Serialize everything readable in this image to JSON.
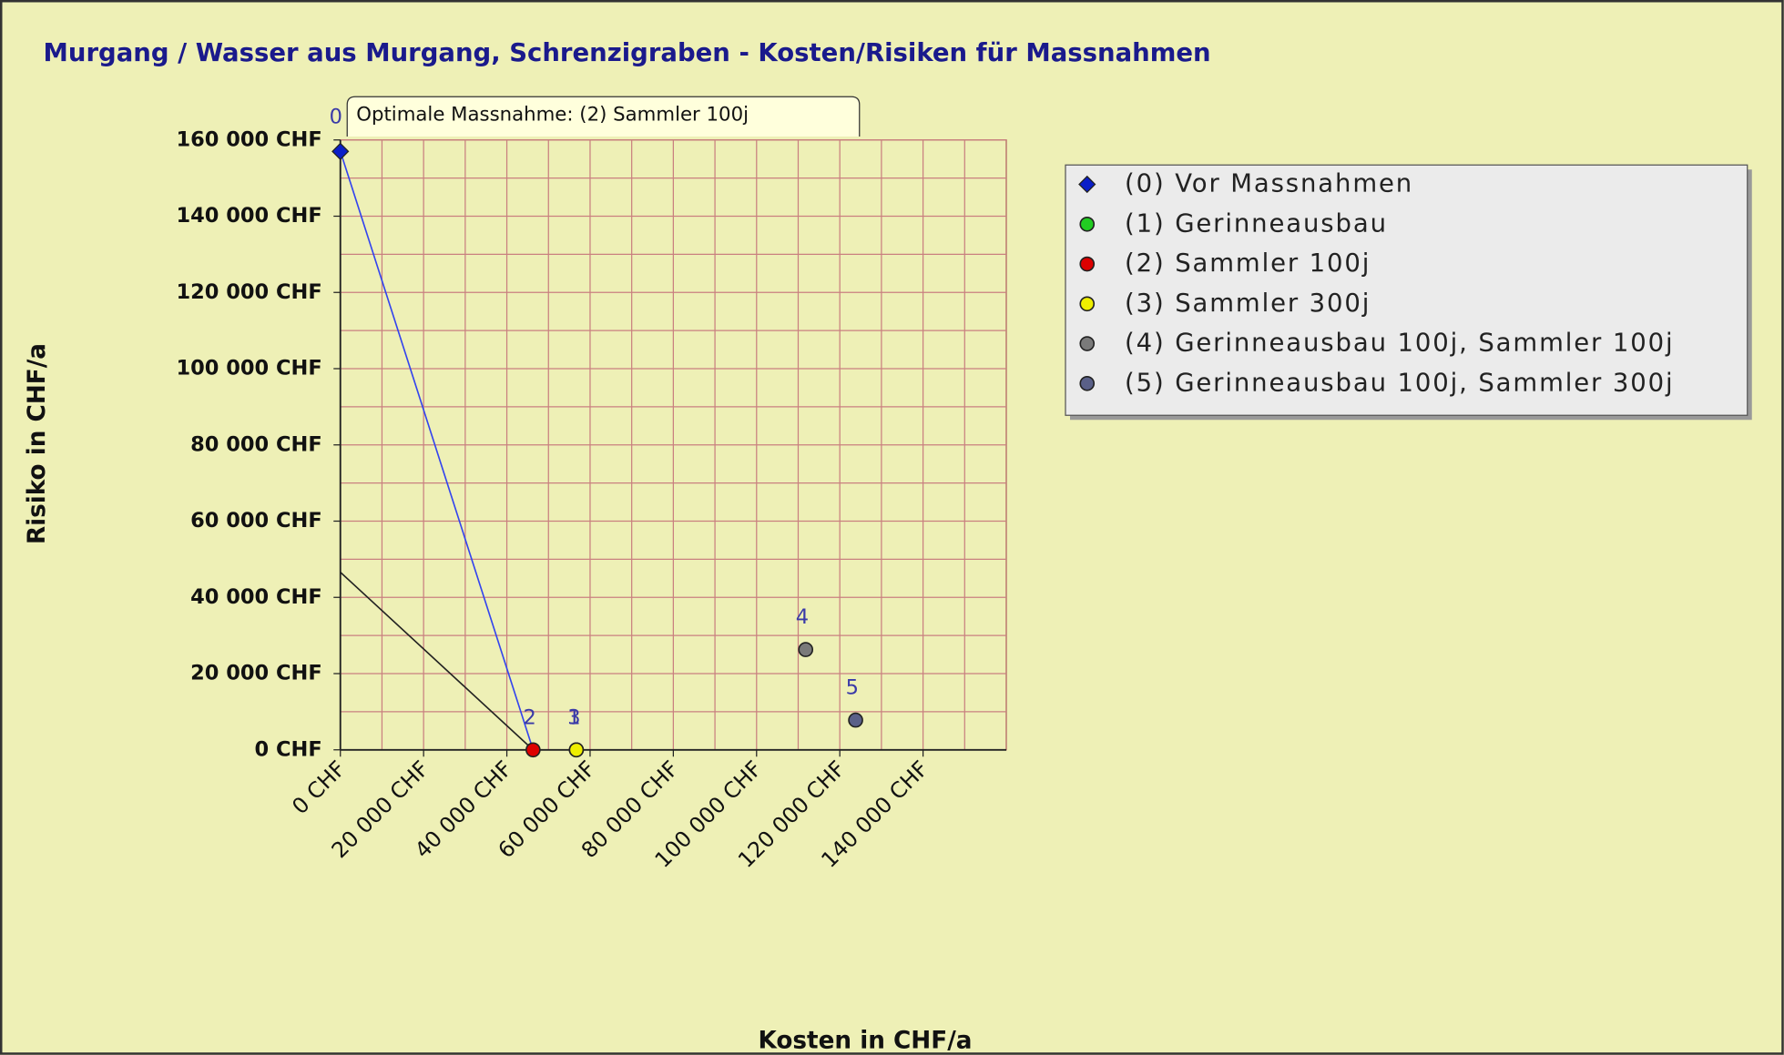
{
  "chart_data": {
    "type": "scatter",
    "title": "Murgang / Wasser aus Murgang, Schrenzigraben - Kosten/Risiken für Massnahmen",
    "x_label": "Kosten in CHF/a",
    "y_label": "Risiko in CHF/a",
    "annotation": "Optimale Massnahme: (2) Sammler 100j",
    "xlim": [
      0,
      160000
    ],
    "ylim": [
      0,
      160000
    ],
    "xticks": [
      {
        "value": 0,
        "label": "0 CHF"
      },
      {
        "value": 20000,
        "label": "20 000 CHF"
      },
      {
        "value": 40000,
        "label": "40 000 CHF"
      },
      {
        "value": 60000,
        "label": "60 000 CHF"
      },
      {
        "value": 80000,
        "label": "80 000 CHF"
      },
      {
        "value": 100000,
        "label": "100 000 CHF"
      },
      {
        "value": 120000,
        "label": "120 000 CHF"
      },
      {
        "value": 140000,
        "label": "140 000 CHF"
      }
    ],
    "yticks": [
      {
        "value": 0,
        "label": "0 CHF"
      },
      {
        "value": 20000,
        "label": "20 000 CHF"
      },
      {
        "value": 40000,
        "label": "40 000 CHF"
      },
      {
        "value": 60000,
        "label": "60 000 CHF"
      },
      {
        "value": 80000,
        "label": "80 000 CHF"
      },
      {
        "value": 100000,
        "label": "100 000 CHF"
      },
      {
        "value": 120000,
        "label": "120 000 CHF"
      },
      {
        "value": 140000,
        "label": "140 000 CHF"
      },
      {
        "value": 160000,
        "label": "160 000 CHF"
      }
    ],
    "grid": true,
    "series": [
      {
        "name": "(0) Vor Massnahmen",
        "color": "#0a1ec8",
        "x": [
          0
        ],
        "values": [
          157000
        ],
        "point_label": "0"
      },
      {
        "name": "(1) Gerinneausbau",
        "color": "#22cc22",
        "x": [
          56700
        ],
        "values": [
          0
        ],
        "point_label": "1"
      },
      {
        "name": "(2) Sammler 100j",
        "color": "#dd0000",
        "x": [
          46300
        ],
        "values": [
          0
        ],
        "point_label": "2"
      },
      {
        "name": "(3) Sammler 300j",
        "color": "#eeee00",
        "x": [
          56700
        ],
        "values": [
          0
        ],
        "point_label": "3"
      },
      {
        "name": "(4) Gerinneausbau 100j, Sammler 100j",
        "color": "#7a7a7a",
        "x": [
          111800
        ],
        "values": [
          26300
        ],
        "point_label": "4"
      },
      {
        "name": "(5) Gerinneausbau 100j, Sammler 300j",
        "color": "#5a6088",
        "x": [
          123800
        ],
        "values": [
          7800
        ],
        "point_label": "5"
      }
    ],
    "lines": [
      {
        "color": "#3344ee",
        "x": [
          0,
          46300
        ],
        "values": [
          157000,
          0
        ]
      },
      {
        "color": "#222222",
        "x": [
          0,
          46300
        ],
        "values": [
          46600,
          0
        ]
      }
    ]
  }
}
